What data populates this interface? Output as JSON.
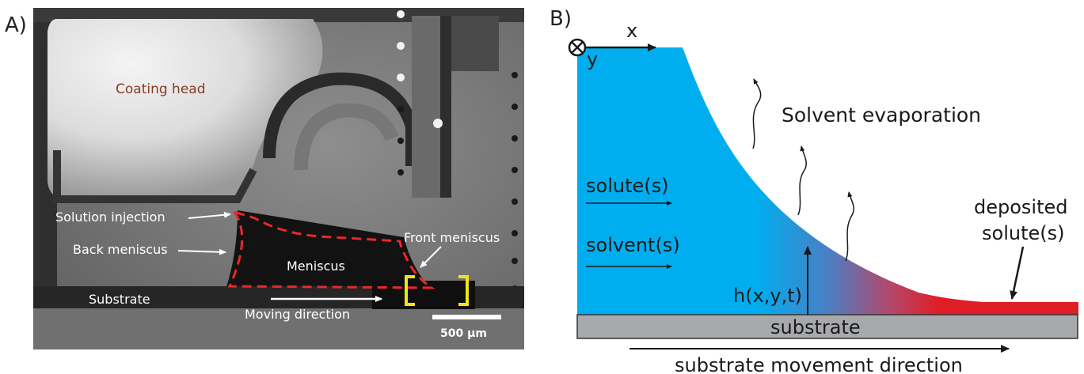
{
  "panel_a": {
    "label": "A)",
    "coating_head": "Coating head",
    "solution_injection": "Solution injection",
    "back_meniscus": "Back meniscus",
    "front_meniscus": "Front meniscus",
    "meniscus": "Meniscus",
    "substrate": "Substrate",
    "moving_direction": "Moving direction",
    "scale_bar": "500 µm",
    "colors": {
      "dashed_outline": "#e8282c",
      "bracket": "#f2e21a"
    }
  },
  "panel_b": {
    "label": "B)",
    "axis_x": "x",
    "axis_y": "y",
    "solvent_evaporation": "Solvent evaporation",
    "solutes": "solute(s)",
    "solvents": "solvent(s)",
    "deposited_line1": "deposited",
    "deposited_line2": "solute(s)",
    "height": "h(x,y,t)",
    "substrate": "substrate",
    "substrate_movement": "substrate movement direction",
    "colors": {
      "liquid": "#00aeef",
      "deposit": "#e01e26",
      "substrate": "#a7a9ac"
    }
  }
}
